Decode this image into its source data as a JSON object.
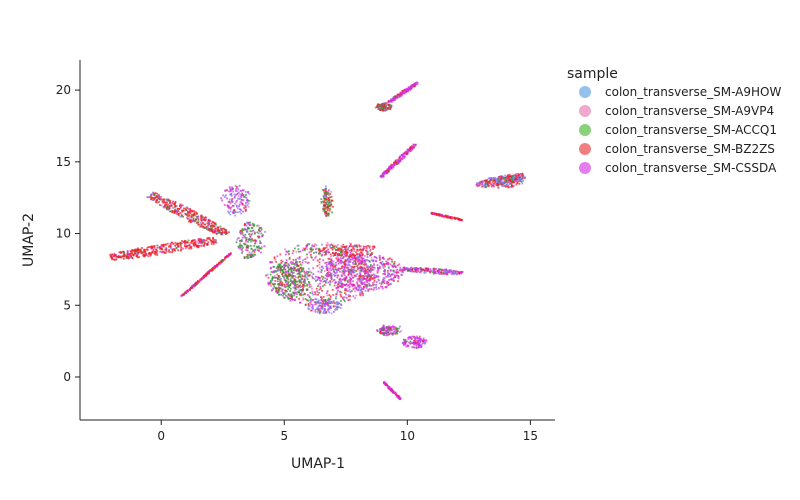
{
  "chart_data": {
    "type": "scatter",
    "xlabel": "UMAP-1",
    "ylabel": "UMAP-2",
    "xlim": [
      -3.3,
      16.0
    ],
    "ylim": [
      -3.0,
      22.1
    ],
    "xticks": [
      0,
      5,
      10,
      15
    ],
    "yticks": [
      0,
      5,
      10,
      15,
      20
    ],
    "grid": false,
    "legend": {
      "title": "sample",
      "position": "right"
    },
    "series": [
      {
        "name": "colon_transverse_SM-A9HOW",
        "color": "#92c1ee"
      },
      {
        "name": "colon_transverse_SM-A9VP4",
        "color": "#f0a8cf"
      },
      {
        "name": "colon_transverse_SM-ACCQ1",
        "color": "#88d27a"
      },
      {
        "name": "colon_transverse_SM-BZ2ZS",
        "color": "#f08080"
      },
      {
        "name": "colon_transverse_SM-CSSDA",
        "color": "#e47ded"
      }
    ],
    "draw_colors": [
      "#7f7ff5",
      "#f071c6",
      "#2e9a2e",
      "#f0202c",
      "#d42ee8"
    ],
    "clusters": [
      {
        "cx": 6.4,
        "cy": 7.2,
        "rx": 2.2,
        "ry": 2.2,
        "mix": [
          0.12,
          0.12,
          0.16,
          0.28,
          0.32
        ]
      },
      {
        "cx": 8.2,
        "cy": 7.4,
        "rx": 1.6,
        "ry": 1.3,
        "mix": [
          0.18,
          0.08,
          0.04,
          0.22,
          0.48
        ]
      },
      {
        "cx": 5.2,
        "cy": 6.8,
        "rx": 0.8,
        "ry": 1.3,
        "mix": [
          0.06,
          0.06,
          0.55,
          0.18,
          0.15
        ]
      },
      {
        "cx": 7.6,
        "cy": 8.9,
        "rx": 1.2,
        "ry": 0.45,
        "mix": [
          0.05,
          0.12,
          0.05,
          0.7,
          0.08
        ]
      },
      {
        "cx": 6.6,
        "cy": 5.0,
        "rx": 0.7,
        "ry": 0.5,
        "mix": [
          0.45,
          0.1,
          0.1,
          0.1,
          0.25
        ]
      },
      {
        "cx": 3.0,
        "cy": 12.4,
        "rx": 0.55,
        "ry": 1.0,
        "mix": [
          0.35,
          0.08,
          0.05,
          0.07,
          0.45
        ]
      },
      {
        "cx": 3.6,
        "cy": 9.6,
        "rx": 0.55,
        "ry": 1.3,
        "mix": [
          0.1,
          0.05,
          0.55,
          0.15,
          0.15
        ]
      },
      {
        "cx": 6.7,
        "cy": 12.3,
        "rx": 0.18,
        "ry": 1.0,
        "mix": [
          0.03,
          0.05,
          0.4,
          0.5,
          0.02
        ]
      },
      {
        "cx": 9.2,
        "cy": 3.3,
        "rx": 0.45,
        "ry": 0.3,
        "mix": [
          0.1,
          0.1,
          0.3,
          0.15,
          0.35
        ]
      },
      {
        "cx": 10.2,
        "cy": 2.5,
        "rx": 0.5,
        "ry": 0.4,
        "mix": [
          0.15,
          0.1,
          0.05,
          0.1,
          0.6
        ]
      },
      {
        "cx": 13.9,
        "cy": 13.7,
        "rx": 0.8,
        "ry": 0.4,
        "mix": [
          0.3,
          0.05,
          0.15,
          0.45,
          0.05
        ]
      },
      {
        "cx": 9.0,
        "cy": 18.9,
        "rx": 0.3,
        "ry": 0.25,
        "mix": [
          0.05,
          0.1,
          0.35,
          0.4,
          0.1
        ]
      }
    ],
    "streaks": [
      {
        "x0": -2.1,
        "y0": 8.4,
        "x1": 2.2,
        "y1": 9.6,
        "w": 0.35,
        "mix": [
          0.05,
          0.05,
          0.05,
          0.8,
          0.05
        ]
      },
      {
        "x0": -0.5,
        "y0": 12.8,
        "x1": 2.6,
        "y1": 10.0,
        "w": 0.35,
        "mix": [
          0.15,
          0.05,
          0.15,
          0.6,
          0.05
        ]
      },
      {
        "x0": 0.8,
        "y0": 5.7,
        "x1": 2.8,
        "y1": 8.7,
        "w": 0.05,
        "mix": [
          0,
          0.05,
          0.05,
          0.5,
          0.4
        ]
      },
      {
        "x0": 9.8,
        "y0": 7.6,
        "x1": 12.2,
        "y1": 7.3,
        "w": 0.18,
        "mix": [
          0.25,
          0.05,
          0.05,
          0.2,
          0.45
        ]
      },
      {
        "x0": 10.9,
        "y0": 11.5,
        "x1": 12.2,
        "y1": 11.0,
        "w": 0.06,
        "mix": [
          0,
          0,
          0,
          0.7,
          0.3
        ]
      },
      {
        "x0": 8.9,
        "y0": 14.0,
        "x1": 10.3,
        "y1": 16.3,
        "w": 0.1,
        "mix": [
          0,
          0.05,
          0.05,
          0.25,
          0.65
        ]
      },
      {
        "x0": 9.2,
        "y0": 19.2,
        "x1": 10.4,
        "y1": 20.6,
        "w": 0.1,
        "mix": [
          0.05,
          0.05,
          0.05,
          0.1,
          0.75
        ]
      },
      {
        "x0": 9.0,
        "y0": -0.3,
        "x1": 9.7,
        "y1": -1.5,
        "w": 0.05,
        "mix": [
          0,
          0,
          0,
          0.3,
          0.7
        ]
      },
      {
        "x0": 12.8,
        "y0": 13.4,
        "x1": 14.7,
        "y1": 14.1,
        "w": 0.3,
        "mix": [
          0.35,
          0.05,
          0.1,
          0.45,
          0.05
        ]
      }
    ]
  }
}
